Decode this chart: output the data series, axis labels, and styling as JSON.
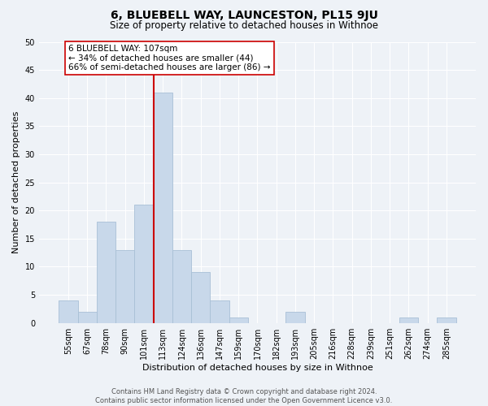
{
  "title": "6, BLUEBELL WAY, LAUNCESTON, PL15 9JU",
  "subtitle": "Size of property relative to detached houses in Withnoe",
  "xlabel": "Distribution of detached houses by size in Withnoe",
  "ylabel": "Number of detached properties",
  "footer_line1": "Contains HM Land Registry data © Crown copyright and database right 2024.",
  "footer_line2": "Contains public sector information licensed under the Open Government Licence v3.0.",
  "bin_labels": [
    "55sqm",
    "67sqm",
    "78sqm",
    "90sqm",
    "101sqm",
    "113sqm",
    "124sqm",
    "136sqm",
    "147sqm",
    "159sqm",
    "170sqm",
    "182sqm",
    "193sqm",
    "205sqm",
    "216sqm",
    "228sqm",
    "239sqm",
    "251sqm",
    "262sqm",
    "274sqm",
    "285sqm"
  ],
  "bar_heights": [
    4,
    2,
    18,
    13,
    21,
    41,
    13,
    9,
    4,
    1,
    0,
    0,
    2,
    0,
    0,
    0,
    0,
    0,
    1,
    0,
    1
  ],
  "bar_color": "#c8d8ea",
  "bar_edge_color": "#a8c0d6",
  "ref_line_bin_index": 5,
  "ref_line_label": "6 BLUEBELL WAY: 107sqm",
  "annotation_line1": "← 34% of detached houses are smaller (44)",
  "annotation_line2": "66% of semi-detached houses are larger (86) →",
  "ylim": [
    0,
    50
  ],
  "yticks": [
    0,
    5,
    10,
    15,
    20,
    25,
    30,
    35,
    40,
    45,
    50
  ],
  "ref_line_color": "#cc0000",
  "background_color": "#eef2f7",
  "plot_bg_color": "#eef2f7",
  "annotation_box_facecolor": "#ffffff",
  "annotation_box_edgecolor": "#cc0000",
  "grid_color": "#ffffff",
  "title_fontsize": 10,
  "subtitle_fontsize": 8.5,
  "ylabel_fontsize": 8,
  "xlabel_fontsize": 8,
  "tick_fontsize": 7,
  "footer_fontsize": 6
}
